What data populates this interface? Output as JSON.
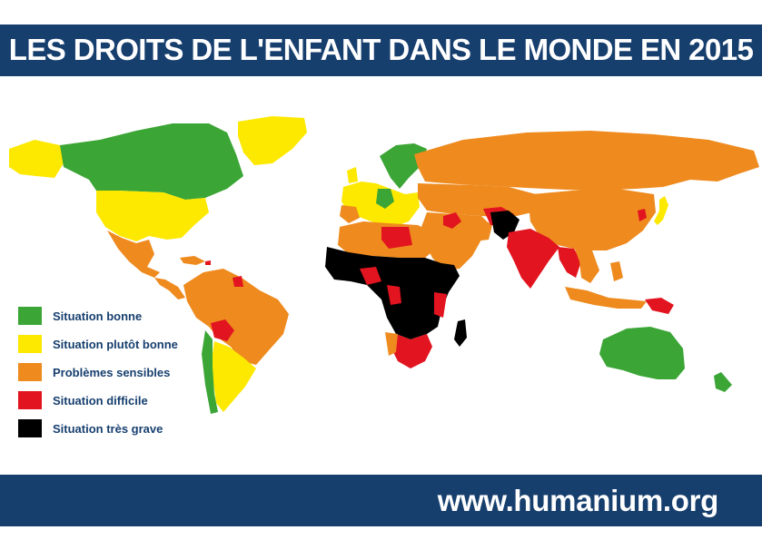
{
  "header": {
    "title": "LES DROITS DE L'ENFANT DANS LE MONDE EN 2015"
  },
  "footer": {
    "url": "www.humanium.org"
  },
  "colors": {
    "bonne": "#3ba535",
    "plutot_bonne": "#fde800",
    "sensibles": "#ee8a1e",
    "difficile": "#e2141f",
    "tres_grave": "#000000",
    "banner": "#173f6e"
  },
  "legend": {
    "items": [
      {
        "key": "bonne",
        "label": "Situation bonne"
      },
      {
        "key": "plutot_bonne",
        "label": "Situation plutôt bonne"
      },
      {
        "key": "sensibles",
        "label": "Problèmes sensibles"
      },
      {
        "key": "difficile",
        "label": "Situation difficile"
      },
      {
        "key": "tres_grave",
        "label": "Situation très grave"
      }
    ]
  }
}
